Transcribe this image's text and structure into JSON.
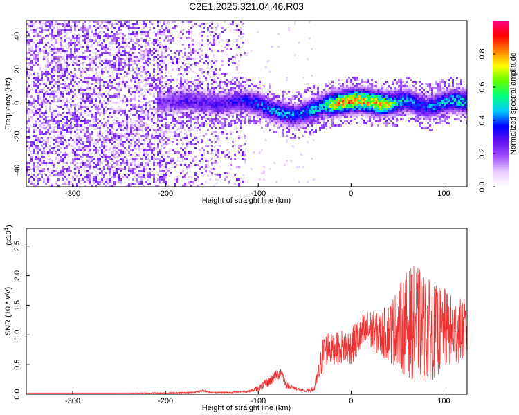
{
  "title": "C2E1.2025.321.04.46.R03",
  "chart_data": [
    {
      "type": "heatmap",
      "title": "C2E1.2025.321.04.46.R03",
      "xlabel": "Height of straight line (km)",
      "ylabel": "Frequency (Hz)",
      "xlim": [
        -350,
        125
      ],
      "ylim": [
        -50,
        49
      ],
      "xticks": [
        -300,
        -200,
        -100,
        0,
        100
      ],
      "yticks": [
        -40,
        -20,
        0,
        20,
        40
      ],
      "colorbar": {
        "label": "Normalized spectral amplitude",
        "range": [
          0.0,
          1.0
        ],
        "ticks": [
          0.0,
          0.2,
          0.4,
          0.6,
          0.8
        ],
        "tick_labels": [
          "0.0",
          "0.2",
          "0.4",
          "0.6",
          "0.8"
        ],
        "colors": [
          "#ffffff",
          "#e8ccff",
          "#a050ff",
          "#6010f0",
          "#0000ff",
          "#00c8ff",
          "#00ff80",
          "#60ff00",
          "#ffff00",
          "#ff8000",
          "#ff0000",
          "#ff0080"
        ]
      },
      "ridge": {
        "x": [
          -200,
          -180,
          -160,
          -140,
          -120,
          -100,
          -85,
          -70,
          -60,
          -50,
          -40,
          -30,
          -20,
          -10,
          0,
          10,
          20,
          30,
          40,
          50,
          60,
          70,
          80,
          90,
          100,
          110,
          125
        ],
        "frequency": [
          1,
          2,
          1,
          0,
          2,
          0,
          -4,
          -6,
          -7,
          -5,
          -3,
          -1,
          0,
          1,
          2,
          2,
          1,
          0,
          0,
          1,
          2,
          0,
          -2,
          -1,
          1,
          2,
          1
        ],
        "amplitude": [
          0.25,
          0.3,
          0.3,
          0.3,
          0.35,
          0.4,
          0.45,
          0.45,
          0.4,
          0.45,
          0.5,
          0.5,
          0.75,
          0.8,
          0.85,
          0.8,
          0.75,
          0.8,
          0.7,
          0.5,
          0.45,
          0.4,
          0.4,
          0.45,
          0.45,
          0.5,
          0.5
        ]
      },
      "noise_region": {
        "x_from": -350,
        "x_to": -115,
        "amplitude": 0.25
      }
    },
    {
      "type": "line",
      "xlabel": "Height of straight line (km)",
      "ylabel": "SNR (10 * v/v)",
      "scale_label": "(x10",
      "scale_exponent": "4",
      "scale_close": ")",
      "xlim": [
        -350,
        125
      ],
      "ylim": [
        0,
        2.8
      ],
      "xticks": [
        -300,
        -200,
        -100,
        0,
        100
      ],
      "yticks": [
        0.0,
        0.5,
        1.0,
        1.5,
        2.0,
        2.5
      ],
      "ytick_labels": [
        "0.0",
        "0.5",
        "1.0",
        "1.5",
        "2.0",
        "2.5"
      ],
      "series": [
        {
          "name": "SNR",
          "color": "#ee3333",
          "x": [
            -350,
            -300,
            -250,
            -200,
            -170,
            -160,
            -150,
            -130,
            -110,
            -100,
            -90,
            -80,
            -75,
            -70,
            -60,
            -50,
            -40,
            -35,
            -30,
            -25,
            -20,
            -10,
            0,
            10,
            20,
            30,
            40,
            50,
            60,
            70,
            80,
            90,
            100,
            110,
            125
          ],
          "y": [
            0.02,
            0.02,
            0.02,
            0.02,
            0.03,
            0.06,
            0.03,
            0.03,
            0.05,
            0.1,
            0.2,
            0.32,
            0.38,
            0.15,
            0.1,
            0.05,
            0.08,
            0.35,
            0.7,
            0.8,
            0.75,
            0.8,
            0.8,
            1.0,
            1.1,
            1.0,
            1.05,
            1.1,
            1.2,
            1.2,
            1.1,
            1.05,
            1.1,
            1.05,
            1.1
          ],
          "spread": [
            0.0,
            0.0,
            0.0,
            0.01,
            0.01,
            0.02,
            0.01,
            0.01,
            0.02,
            0.05,
            0.08,
            0.1,
            0.1,
            0.05,
            0.03,
            0.02,
            0.05,
            0.2,
            0.3,
            0.3,
            0.25,
            0.3,
            0.3,
            0.35,
            0.35,
            0.35,
            0.5,
            0.7,
            0.9,
            1.0,
            0.9,
            0.8,
            0.7,
            0.6,
            0.5
          ]
        }
      ]
    }
  ]
}
